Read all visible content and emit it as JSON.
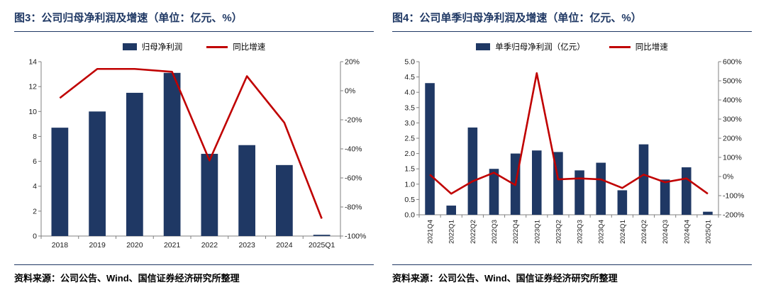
{
  "colors": {
    "bar": "#1F3864",
    "line": "#C00000",
    "title": "#1F3864",
    "rule": "#1F3864",
    "axis": "#808080",
    "text": "#1a1a1a"
  },
  "figure3": {
    "title": "图3：公司归母净利润及增速（单位：亿元、%）",
    "legend": {
      "bar": "归母净利润",
      "line": "同比增速"
    },
    "source": "资料来源：公司公告、Wind、国信证券经济研究所整理"
  },
  "figure4": {
    "title": "图4：公司单季归母净利润及增速（单位：亿元、%）",
    "legend": {
      "bar": "单季归母净利润（亿元）",
      "line": "同比增速"
    },
    "source": "资料来源：公司公告、Wind、国信证券经济研究所整理"
  },
  "chart_data": [
    {
      "type": "bar+line",
      "title": "图3：公司归母净利润及增速（单位：亿元、%）",
      "categories": [
        "2018",
        "2019",
        "2020",
        "2021",
        "2022",
        "2023",
        "2024",
        "2025Q1"
      ],
      "series": [
        {
          "name": "归母净利润",
          "type": "bar",
          "axis": "left",
          "values": [
            8.7,
            10.0,
            11.5,
            13.1,
            6.6,
            7.3,
            5.7,
            0.1
          ]
        },
        {
          "name": "同比增速",
          "type": "line",
          "axis": "right",
          "values": [
            -5,
            15,
            15,
            13,
            -48,
            10,
            -22,
            -88
          ]
        }
      ],
      "left_axis": {
        "min": 0,
        "max": 14,
        "step": 2,
        "decimals": 0,
        "suffix": ""
      },
      "right_axis": {
        "min": -100,
        "max": 20,
        "step": 20,
        "decimals": 0,
        "suffix": "%"
      },
      "x_label_rotation": 0,
      "grid": false,
      "legend_position": "top"
    },
    {
      "type": "bar+line",
      "title": "图4：公司单季归母净利润及增速（单位：亿元、%）",
      "categories": [
        "2021Q4",
        "2022Q1",
        "2022Q2",
        "2022Q3",
        "2022Q4",
        "2023Q1",
        "2023Q2",
        "2023Q3",
        "2023Q4",
        "2024Q1",
        "2024Q2",
        "2024Q3",
        "2024Q4",
        "2025Q1"
      ],
      "series": [
        {
          "name": "单季归母净利润（亿元）",
          "type": "bar",
          "axis": "left",
          "values": [
            4.3,
            0.3,
            2.85,
            1.5,
            2.0,
            2.1,
            2.05,
            1.45,
            1.7,
            0.8,
            2.3,
            1.15,
            1.55,
            0.1
          ]
        },
        {
          "name": "同比增速",
          "type": "line",
          "axis": "right",
          "values": [
            10,
            -90,
            -25,
            20,
            -45,
            540,
            -15,
            -10,
            -15,
            -60,
            10,
            -30,
            -10,
            -90
          ]
        }
      ],
      "left_axis": {
        "min": 0,
        "max": 5,
        "step": 0.5,
        "decimals": 1,
        "suffix": ""
      },
      "right_axis": {
        "min": -200,
        "max": 600,
        "step": 100,
        "decimals": 0,
        "suffix": "%"
      },
      "x_label_rotation": -90,
      "grid": false,
      "legend_position": "top"
    }
  ]
}
